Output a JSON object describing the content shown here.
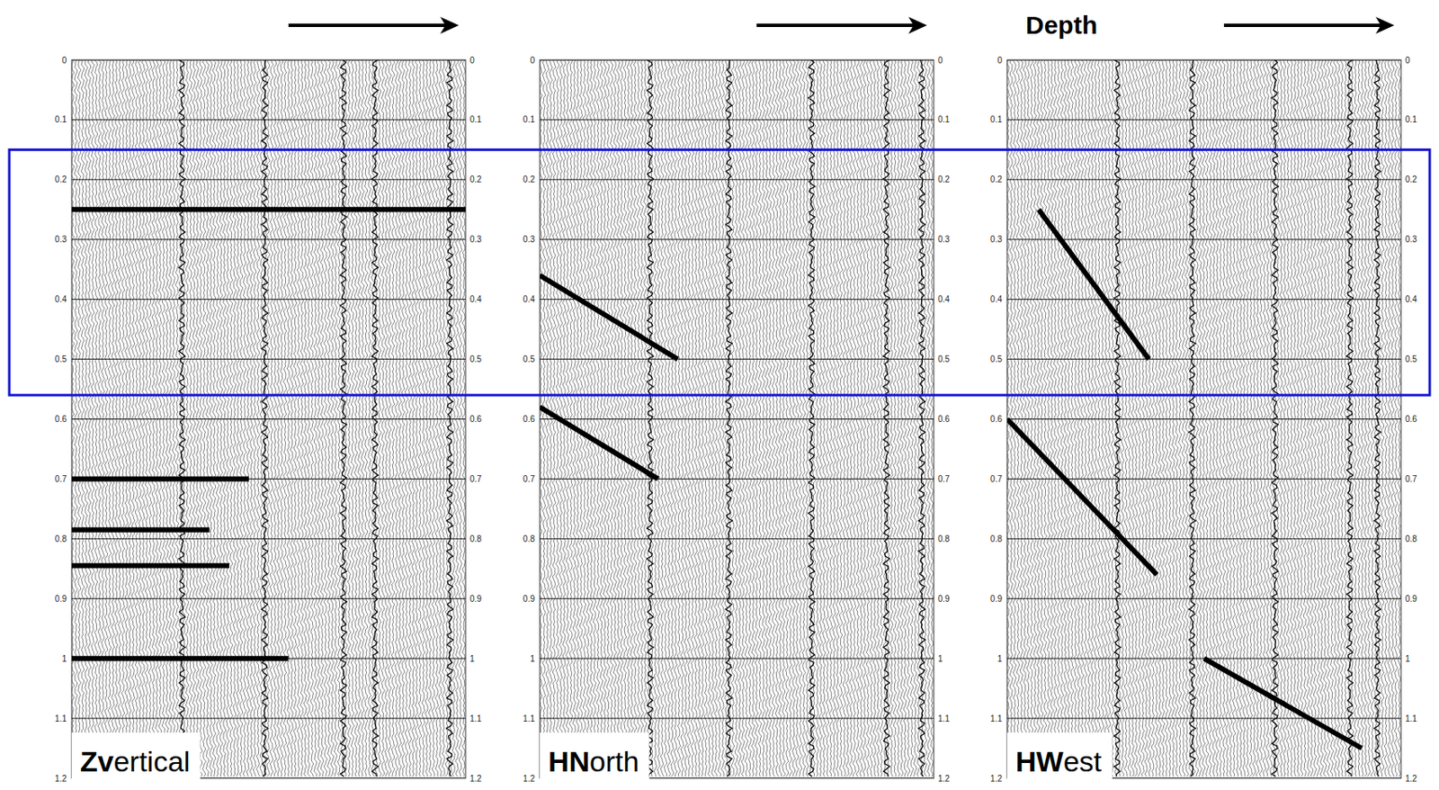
{
  "chart_data": [
    {
      "type": "wiggle",
      "label": "Zvertical",
      "xlim": [
        0,
        100
      ],
      "ylim": [
        0,
        1.2
      ],
      "yticks": [
        0,
        0.1,
        0.2,
        0.3,
        0.4,
        0.5,
        0.6,
        0.7,
        0.8,
        0.9,
        1,
        1.1,
        1.2
      ],
      "grid": true,
      "tick_labels": "y",
      "noisy_traces": [
        28,
        49,
        69,
        77,
        96
      ],
      "events": [
        {
          "x": [
            0,
            100
          ],
          "t": [
            0.25,
            0.25
          ]
        },
        {
          "x": [
            0,
            45
          ],
          "t": [
            0.7,
            0.7
          ]
        },
        {
          "x": [
            0,
            35
          ],
          "t": [
            0.785,
            0.785
          ]
        },
        {
          "x": [
            0,
            40
          ],
          "t": [
            0.845,
            0.845
          ]
        },
        {
          "x": [
            0,
            55
          ],
          "t": [
            1.0,
            1.0
          ]
        }
      ]
    },
    {
      "type": "wiggle",
      "label": "HNorth",
      "xlim": [
        0,
        100
      ],
      "ylim": [
        0,
        1.2
      ],
      "yticks": [
        0,
        0.1,
        0.2,
        0.3,
        0.4,
        0.5,
        0.6,
        0.7,
        0.8,
        0.9,
        1,
        1.1,
        1.2
      ],
      "grid": true,
      "tick_labels": "y",
      "noisy_traces": [
        28,
        48,
        69,
        88,
        97
      ],
      "events": [
        {
          "x": [
            0,
            35
          ],
          "t": [
            0.36,
            0.5
          ]
        },
        {
          "x": [
            0,
            30
          ],
          "t": [
            0.58,
            0.7
          ]
        }
      ]
    },
    {
      "type": "wiggle",
      "label": "HWest",
      "xlim": [
        0,
        100
      ],
      "ylim": [
        0,
        1.2
      ],
      "yticks": [
        0,
        0.1,
        0.2,
        0.3,
        0.4,
        0.5,
        0.6,
        0.7,
        0.8,
        0.9,
        1,
        1.1,
        1.2
      ],
      "grid": true,
      "tick_labels": "y",
      "noisy_traces": [
        28,
        47,
        68,
        87,
        94
      ],
      "events": [
        {
          "x": [
            8,
            36
          ],
          "t": [
            0.25,
            0.5
          ]
        },
        {
          "x": [
            0,
            38
          ],
          "t": [
            0.6,
            0.86
          ]
        },
        {
          "x": [
            50,
            90
          ],
          "t": [
            1.0,
            1.15
          ]
        }
      ]
    }
  ],
  "x_label": "Depth",
  "highlight_window": [
    0.15,
    0.56
  ]
}
